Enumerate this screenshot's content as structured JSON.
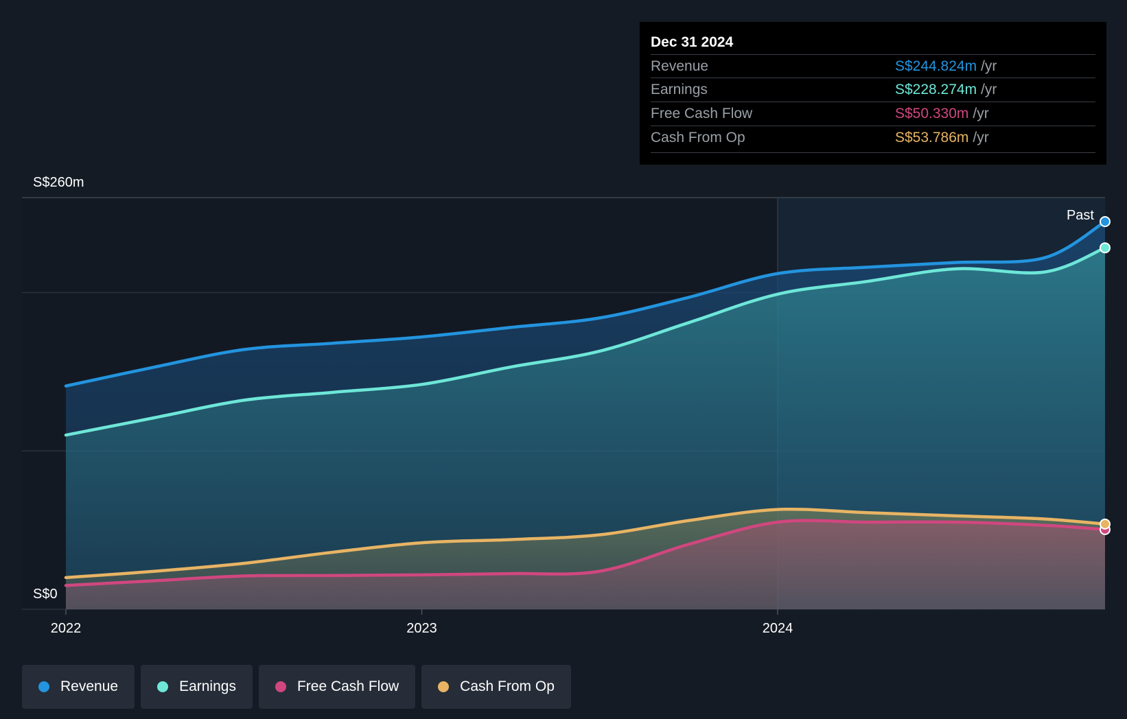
{
  "chart_data": {
    "type": "area",
    "currency_unit": "S$m",
    "y_top_label": "S$260m",
    "y_bottom_label": "S$0",
    "ylim": [
      0,
      260
    ],
    "x_ticks": [
      "2022",
      "2023",
      "2024"
    ],
    "x_range": [
      2022.0,
      2024.92
    ],
    "past_label": "Past",
    "series": [
      {
        "name": "Revenue",
        "color": "#2394df",
        "x": [
          2022.0,
          2022.25,
          2022.5,
          2022.75,
          2023.0,
          2023.25,
          2023.5,
          2023.75,
          2024.0,
          2024.25,
          2024.5,
          2024.75,
          2024.92
        ],
        "values": [
          141,
          153,
          164,
          168,
          172,
          178,
          184,
          197,
          212,
          216,
          219,
          222,
          244.824
        ]
      },
      {
        "name": "Earnings",
        "color": "#6ee7d8",
        "x": [
          2022.0,
          2022.25,
          2022.5,
          2022.75,
          2023.0,
          2023.25,
          2023.5,
          2023.75,
          2024.0,
          2024.25,
          2024.5,
          2024.75,
          2024.92
        ],
        "values": [
          110,
          121,
          132,
          137,
          142,
          153,
          163,
          181,
          199,
          207,
          215,
          213,
          228.274
        ]
      },
      {
        "name": "Free Cash Flow",
        "color": "#d0477f",
        "x": [
          2022.0,
          2022.25,
          2022.5,
          2022.75,
          2023.0,
          2023.25,
          2023.5,
          2023.75,
          2024.0,
          2024.25,
          2024.5,
          2024.75,
          2024.92
        ],
        "values": [
          15,
          18,
          21,
          21.3,
          21.7,
          22.5,
          24,
          41,
          55,
          55,
          55,
          53,
          50.33
        ]
      },
      {
        "name": "Cash From Op",
        "color": "#e8b464",
        "x": [
          2022.0,
          2022.25,
          2022.5,
          2022.75,
          2023.0,
          2023.25,
          2023.5,
          2023.75,
          2024.0,
          2024.25,
          2024.5,
          2024.75,
          2024.92
        ],
        "values": [
          20,
          24,
          29,
          36,
          42,
          44,
          47,
          56,
          63,
          61,
          59,
          57,
          53.786
        ]
      }
    ]
  },
  "tooltip": {
    "date": "Dec 31 2024",
    "rows": [
      {
        "label": "Revenue",
        "value": "S$244.824m",
        "unit": "/yr",
        "color": "#2394df"
      },
      {
        "label": "Earnings",
        "value": "S$228.274m",
        "unit": "/yr",
        "color": "#6ee7d8"
      },
      {
        "label": "Free Cash Flow",
        "value": "S$50.330m",
        "unit": "/yr",
        "color": "#d0477f"
      },
      {
        "label": "Cash From Op",
        "value": "S$53.786m",
        "unit": "/yr",
        "color": "#e8b464"
      }
    ]
  },
  "legend": [
    {
      "label": "Revenue",
      "color": "#2394df"
    },
    {
      "label": "Earnings",
      "color": "#6ee7d8"
    },
    {
      "label": "Free Cash Flow",
      "color": "#d0477f"
    },
    {
      "label": "Cash From Op",
      "color": "#e8b464"
    }
  ]
}
